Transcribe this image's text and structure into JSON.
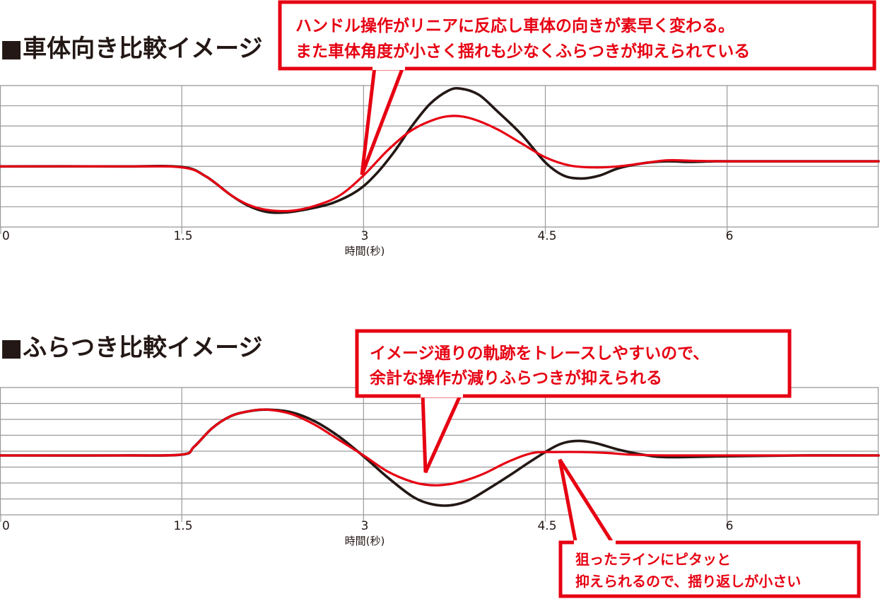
{
  "colors": {
    "accent_red": "#e60012",
    "black_line": "#231815",
    "grid": "#9a9a9a"
  },
  "chart_data": [
    {
      "type": "line",
      "title": "■車体向き比較イメージ",
      "xlabel": "時間(秒)",
      "ylabel": "",
      "x_ticks": [
        "0",
        "1.5",
        "3",
        "4.5",
        "6"
      ],
      "xlim": [
        0,
        7.25
      ],
      "ylim": [
        -3,
        4
      ],
      "grid": true,
      "series": [
        {
          "color": "#231815",
          "x": [
            0,
            1.0,
            1.5,
            1.7,
            1.9,
            2.05,
            2.2,
            2.35,
            2.55,
            2.75,
            2.95,
            3.1,
            3.25,
            3.4,
            3.55,
            3.7,
            3.8,
            3.95,
            4.1,
            4.3,
            4.5,
            4.65,
            4.8,
            4.95,
            5.1,
            5.3,
            5.5,
            5.7,
            5.9,
            6.2,
            6.6,
            7.25
          ],
          "y": [
            0,
            0,
            -0.03,
            -0.5,
            -1.4,
            -1.95,
            -2.25,
            -2.28,
            -2.1,
            -1.8,
            -1.2,
            -0.4,
            0.7,
            2.0,
            3.1,
            3.75,
            3.85,
            3.55,
            2.75,
            1.6,
            0.2,
            -0.45,
            -0.6,
            -0.45,
            -0.1,
            0.15,
            0.25,
            0.22,
            0.25,
            0.25,
            0.25,
            0.25
          ]
        },
        {
          "color": "#e60012",
          "x": [
            0,
            1.0,
            1.5,
            1.7,
            1.9,
            2.05,
            2.2,
            2.4,
            2.6,
            2.8,
            3.0,
            3.2,
            3.4,
            3.6,
            3.75,
            3.9,
            4.1,
            4.3,
            4.5,
            4.7,
            4.9,
            5.1,
            5.3,
            5.5,
            5.7,
            6.0,
            6.6,
            7.25
          ],
          "y": [
            0,
            0,
            -0.05,
            -0.5,
            -1.4,
            -1.9,
            -2.15,
            -2.2,
            -1.95,
            -1.45,
            -0.45,
            0.8,
            1.8,
            2.35,
            2.5,
            2.35,
            1.85,
            1.15,
            0.45,
            0.05,
            -0.05,
            0.0,
            0.15,
            0.3,
            0.28,
            0.25,
            0.25,
            0.25
          ]
        }
      ],
      "annotations": [
        "ハンドル操作がリニアに反応し車体の向きが素早く変わる。",
        "また車体角度が小さく揺れも少なくふらつきが抑えられている"
      ]
    },
    {
      "type": "line",
      "title": "■ふらつき比較イメージ",
      "xlabel": "時間(秒)",
      "ylabel": "",
      "x_ticks": [
        "0",
        "1.5",
        "3",
        "4.5",
        "6"
      ],
      "xlim": [
        0,
        7.25
      ],
      "ylim": [
        -3.5,
        4
      ],
      "grid": true,
      "series": [
        {
          "color": "#231815",
          "x": [
            0,
            1.0,
            1.5,
            1.6,
            1.75,
            1.9,
            2.05,
            2.2,
            2.4,
            2.6,
            2.8,
            3.0,
            3.2,
            3.4,
            3.55,
            3.7,
            3.85,
            4.0,
            4.2,
            4.4,
            4.6,
            4.75,
            4.9,
            5.1,
            5.3,
            5.5,
            6.0,
            6.6,
            7.25
          ],
          "y": [
            0,
            0,
            0.05,
            0.5,
            1.6,
            2.3,
            2.6,
            2.7,
            2.55,
            2.0,
            1.1,
            -0.05,
            -1.3,
            -2.4,
            -2.85,
            -2.95,
            -2.7,
            -2.1,
            -1.2,
            -0.25,
            0.6,
            0.85,
            0.75,
            0.35,
            0.05,
            -0.1,
            -0.05,
            0.0,
            0.0
          ]
        },
        {
          "color": "#e60012",
          "x": [
            0,
            1.0,
            1.5,
            1.6,
            1.75,
            1.9,
            2.05,
            2.2,
            2.4,
            2.6,
            2.8,
            3.0,
            3.2,
            3.4,
            3.55,
            3.7,
            3.85,
            4.0,
            4.2,
            4.4,
            4.6,
            4.8,
            5.0,
            5.2,
            5.5,
            6.0,
            6.6,
            7.25
          ],
          "y": [
            0,
            0,
            0.05,
            0.5,
            1.6,
            2.3,
            2.6,
            2.7,
            2.45,
            1.8,
            0.9,
            0.0,
            -0.95,
            -1.55,
            -1.75,
            -1.7,
            -1.45,
            -1.05,
            -0.35,
            0.15,
            0.2,
            0.2,
            0.15,
            0.05,
            0.0,
            0.0,
            0.0,
            0.0
          ]
        }
      ],
      "annotations": [
        "イメージ通りの軌跡をトレースしやすいので、",
        "余計な操作が減りふらつきが抑えられる",
        "狙ったラインにピタッと",
        "抑えられるので、揺り返しが小さい"
      ]
    }
  ]
}
